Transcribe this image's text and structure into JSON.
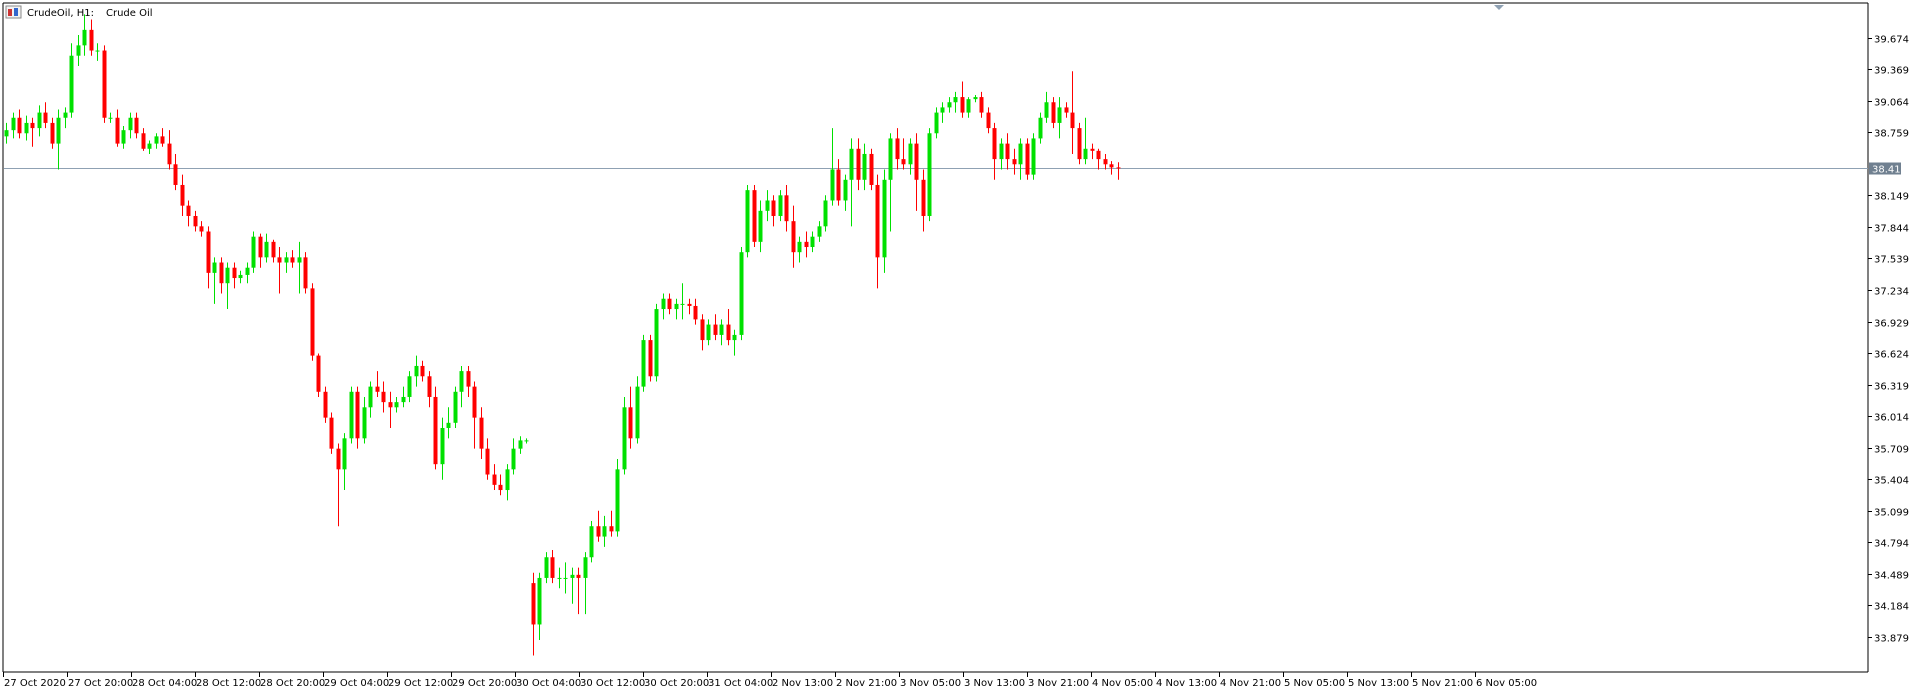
{
  "header": {
    "symbol_label": "CrudeOil, H1:",
    "description": "Crude Oil",
    "icon": "chart-window-icon"
  },
  "chart_data": {
    "type": "candlestick",
    "symbol": "CrudeOil",
    "timeframe": "H1",
    "description": "Crude Oil",
    "ylim": [
      33.55,
      40.0
    ],
    "y_ticks": [
      39.674,
      39.369,
      39.064,
      38.759,
      38.149,
      37.844,
      37.539,
      37.234,
      36.929,
      36.624,
      36.319,
      36.014,
      35.709,
      35.404,
      35.099,
      34.794,
      34.489,
      34.184,
      33.879
    ],
    "current_price": 38.415,
    "x_labels": [
      "27 Oct 2020",
      "27 Oct 20:00",
      "28 Oct 04:00",
      "28 Oct 12:00",
      "28 Oct 20:00",
      "29 Oct 04:00",
      "29 Oct 12:00",
      "29 Oct 20:00",
      "30 Oct 04:00",
      "30 Oct 12:00",
      "30 Oct 20:00",
      "31 Oct 04:00",
      "2 Nov 13:00",
      "2 Nov 21:00",
      "3 Nov 05:00",
      "3 Nov 13:00",
      "3 Nov 21:00",
      "4 Nov 05:00",
      "4 Nov 13:00",
      "4 Nov 21:00",
      "5 Nov 05:00",
      "5 Nov 13:00",
      "5 Nov 21:00",
      "6 Nov 05:00"
    ],
    "colors": {
      "bull": "#00e000",
      "bear": "#ff0000",
      "price_line": "#8fa1b3",
      "price_label_bg": "#708090",
      "axis": "#000000"
    },
    "candles": [
      [
        38.72,
        38.85,
        38.65,
        38.78
      ],
      [
        38.78,
        38.95,
        38.7,
        38.9
      ],
      [
        38.9,
        38.98,
        38.7,
        38.75
      ],
      [
        38.75,
        38.92,
        38.68,
        38.85
      ],
      [
        38.85,
        38.9,
        38.62,
        38.8
      ],
      [
        38.8,
        39.02,
        38.72,
        38.95
      ],
      [
        38.95,
        39.05,
        38.8,
        38.85
      ],
      [
        38.85,
        38.9,
        38.6,
        38.65
      ],
      [
        38.65,
        38.98,
        38.4,
        38.9
      ],
      [
        38.9,
        39.0,
        38.8,
        38.95
      ],
      [
        38.95,
        39.62,
        38.9,
        39.5
      ],
      [
        39.5,
        39.7,
        39.4,
        39.6
      ],
      [
        39.6,
        39.9,
        39.5,
        39.75
      ],
      [
        39.75,
        39.85,
        39.5,
        39.55
      ],
      [
        39.55,
        39.62,
        39.45,
        39.55
      ],
      [
        39.55,
        39.6,
        38.85,
        38.9
      ],
      [
        38.9,
        38.95,
        38.85,
        38.9
      ],
      [
        38.9,
        38.98,
        38.62,
        38.65
      ],
      [
        38.65,
        38.82,
        38.6,
        38.78
      ],
      [
        38.78,
        38.95,
        38.7,
        38.9
      ],
      [
        38.9,
        38.95,
        38.7,
        38.75
      ],
      [
        38.75,
        38.8,
        38.58,
        38.6
      ],
      [
        38.6,
        38.68,
        38.55,
        38.65
      ],
      [
        38.65,
        38.75,
        38.6,
        38.72
      ],
      [
        38.72,
        38.8,
        38.62,
        38.65
      ],
      [
        38.65,
        38.78,
        38.4,
        38.45
      ],
      [
        38.45,
        38.55,
        38.2,
        38.25
      ],
      [
        38.25,
        38.35,
        37.95,
        38.05
      ],
      [
        38.05,
        38.1,
        37.85,
        37.95
      ],
      [
        37.95,
        38.0,
        37.8,
        37.85
      ],
      [
        37.85,
        37.9,
        37.75,
        37.8
      ],
      [
        37.8,
        37.85,
        37.25,
        37.4
      ],
      [
        37.4,
        37.55,
        37.1,
        37.5
      ],
      [
        37.5,
        37.55,
        37.2,
        37.3
      ],
      [
        37.3,
        37.5,
        37.05,
        37.45
      ],
      [
        37.45,
        37.5,
        37.25,
        37.35
      ],
      [
        37.35,
        37.42,
        37.3,
        37.38
      ],
      [
        37.38,
        37.5,
        37.3,
        37.45
      ],
      [
        37.45,
        37.8,
        37.4,
        37.75
      ],
      [
        37.75,
        37.78,
        37.45,
        37.55
      ],
      [
        37.55,
        37.78,
        37.5,
        37.7
      ],
      [
        37.7,
        37.72,
        37.5,
        37.55
      ],
      [
        37.55,
        37.65,
        37.2,
        37.5
      ],
      [
        37.5,
        37.6,
        37.4,
        37.55
      ],
      [
        37.55,
        37.62,
        37.45,
        37.5
      ],
      [
        37.5,
        37.7,
        37.2,
        37.55
      ],
      [
        37.55,
        37.6,
        37.2,
        37.25
      ],
      [
        37.25,
        37.3,
        36.55,
        36.6
      ],
      [
        36.6,
        36.62,
        36.2,
        36.25
      ],
      [
        36.25,
        36.3,
        35.95,
        36.0
      ],
      [
        36.0,
        36.05,
        35.65,
        35.7
      ],
      [
        35.7,
        35.75,
        34.95,
        35.5
      ],
      [
        35.5,
        35.85,
        35.3,
        35.8
      ],
      [
        35.8,
        36.3,
        35.75,
        36.25
      ],
      [
        36.25,
        36.3,
        35.7,
        35.8
      ],
      [
        35.8,
        36.2,
        35.75,
        36.1
      ],
      [
        36.1,
        36.35,
        36.0,
        36.3
      ],
      [
        36.3,
        36.45,
        36.2,
        36.25
      ],
      [
        36.25,
        36.35,
        36.05,
        36.15
      ],
      [
        36.15,
        36.25,
        35.9,
        36.1
      ],
      [
        36.1,
        36.2,
        36.05,
        36.15
      ],
      [
        36.15,
        36.3,
        36.1,
        36.2
      ],
      [
        36.2,
        36.45,
        36.15,
        36.4
      ],
      [
        36.4,
        36.6,
        36.3,
        36.5
      ],
      [
        36.5,
        36.55,
        36.35,
        36.4
      ],
      [
        36.4,
        36.45,
        36.1,
        36.2
      ],
      [
        36.2,
        36.3,
        35.5,
        35.55
      ],
      [
        35.55,
        36.0,
        35.4,
        35.9
      ],
      [
        35.9,
        36.1,
        35.8,
        35.95
      ],
      [
        35.95,
        36.3,
        35.9,
        36.25
      ],
      [
        36.25,
        36.5,
        36.1,
        36.45
      ],
      [
        36.45,
        36.5,
        36.2,
        36.3
      ],
      [
        36.3,
        36.35,
        35.7,
        36.0
      ],
      [
        36.0,
        36.1,
        35.6,
        35.7
      ],
      [
        35.7,
        35.8,
        35.4,
        35.45
      ],
      [
        35.45,
        35.55,
        35.3,
        35.35
      ],
      [
        35.35,
        35.45,
        35.25,
        35.3
      ],
      [
        35.3,
        35.55,
        35.2,
        35.5
      ],
      [
        35.5,
        35.8,
        35.45,
        35.7
      ],
      [
        35.7,
        35.82,
        35.65,
        35.78
      ],
      [
        35.78,
        35.8,
        35.75,
        35.78
      ],
      [
        34.4,
        34.5,
        33.7,
        34.0
      ],
      [
        34.0,
        34.5,
        33.85,
        34.45
      ],
      [
        34.45,
        34.7,
        34.4,
        34.65
      ],
      [
        34.65,
        34.72,
        34.4,
        34.45
      ],
      [
        34.45,
        34.55,
        34.35,
        34.45
      ],
      [
        34.45,
        34.6,
        34.3,
        34.45
      ],
      [
        34.45,
        34.55,
        34.2,
        34.48
      ],
      [
        34.48,
        34.55,
        34.1,
        34.45
      ],
      [
        34.45,
        34.7,
        34.1,
        34.65
      ],
      [
        34.65,
        35.0,
        34.6,
        34.95
      ],
      [
        34.95,
        35.1,
        34.8,
        34.85
      ],
      [
        34.85,
        35.05,
        34.75,
        34.95
      ],
      [
        34.95,
        35.1,
        34.85,
        34.9
      ],
      [
        34.9,
        35.6,
        34.85,
        35.5
      ],
      [
        35.5,
        36.2,
        35.45,
        36.1
      ],
      [
        36.1,
        36.3,
        35.7,
        35.8
      ],
      [
        35.8,
        36.4,
        35.75,
        36.3
      ],
      [
        36.3,
        36.8,
        36.25,
        36.75
      ],
      [
        36.75,
        36.8,
        36.35,
        36.4
      ],
      [
        36.4,
        37.1,
        36.35,
        37.05
      ],
      [
        37.05,
        37.2,
        36.95,
        37.15
      ],
      [
        37.15,
        37.2,
        37.0,
        37.05
      ],
      [
        37.05,
        37.15,
        36.95,
        37.1
      ],
      [
        37.1,
        37.3,
        36.95,
        37.1
      ],
      [
        37.1,
        37.15,
        37.0,
        37.08
      ],
      [
        37.08,
        37.15,
        36.9,
        36.95
      ],
      [
        36.95,
        37.0,
        36.65,
        36.75
      ],
      [
        36.75,
        36.95,
        36.7,
        36.9
      ],
      [
        36.9,
        37.0,
        36.75,
        36.8
      ],
      [
        36.8,
        36.95,
        36.7,
        36.9
      ],
      [
        36.9,
        37.05,
        36.7,
        36.75
      ],
      [
        36.75,
        36.85,
        36.6,
        36.8
      ],
      [
        36.8,
        37.65,
        36.75,
        37.6
      ],
      [
        37.6,
        38.25,
        37.55,
        38.2
      ],
      [
        38.2,
        38.25,
        37.65,
        37.7
      ],
      [
        37.7,
        38.1,
        37.6,
        38.0
      ],
      [
        38.0,
        38.2,
        37.9,
        38.1
      ],
      [
        38.1,
        38.15,
        37.85,
        37.95
      ],
      [
        37.95,
        38.2,
        37.9,
        38.15
      ],
      [
        38.15,
        38.25,
        37.8,
        37.9
      ],
      [
        37.9,
        38.05,
        37.45,
        37.6
      ],
      [
        37.6,
        37.75,
        37.5,
        37.7
      ],
      [
        37.7,
        37.8,
        37.55,
        37.65
      ],
      [
        37.65,
        37.8,
        37.6,
        37.75
      ],
      [
        37.75,
        37.9,
        37.7,
        37.85
      ],
      [
        37.85,
        38.15,
        37.8,
        38.1
      ],
      [
        38.1,
        38.8,
        38.05,
        38.4
      ],
      [
        38.4,
        38.5,
        38.05,
        38.1
      ],
      [
        38.1,
        38.35,
        38.0,
        38.3
      ],
      [
        38.3,
        38.7,
        37.85,
        38.6
      ],
      [
        38.6,
        38.7,
        38.2,
        38.3
      ],
      [
        38.3,
        38.65,
        38.2,
        38.55
      ],
      [
        38.55,
        38.6,
        38.2,
        38.25
      ],
      [
        38.25,
        38.35,
        37.25,
        37.55
      ],
      [
        37.55,
        38.4,
        37.4,
        38.3
      ],
      [
        38.3,
        38.75,
        37.8,
        38.7
      ],
      [
        38.7,
        38.8,
        38.4,
        38.5
      ],
      [
        38.5,
        38.7,
        38.4,
        38.45
      ],
      [
        38.45,
        38.7,
        38.35,
        38.65
      ],
      [
        38.65,
        38.75,
        38.0,
        38.3
      ],
      [
        38.3,
        38.4,
        37.8,
        37.95
      ],
      [
        37.95,
        38.8,
        37.9,
        38.75
      ],
      [
        38.75,
        39.0,
        38.7,
        38.95
      ],
      [
        38.95,
        39.05,
        38.85,
        39.0
      ],
      [
        39.0,
        39.1,
        38.95,
        39.05
      ],
      [
        39.05,
        39.15,
        38.95,
        39.1
      ],
      [
        39.1,
        39.25,
        38.9,
        38.95
      ],
      [
        38.95,
        39.1,
        38.9,
        39.08
      ],
      [
        39.08,
        39.12,
        39.05,
        39.1
      ],
      [
        39.1,
        39.15,
        38.9,
        38.95
      ],
      [
        38.95,
        39.0,
        38.75,
        38.8
      ],
      [
        38.8,
        38.85,
        38.3,
        38.5
      ],
      [
        38.5,
        38.7,
        38.4,
        38.65
      ],
      [
        38.65,
        38.75,
        38.4,
        38.5
      ],
      [
        38.5,
        38.6,
        38.35,
        38.45
      ],
      [
        38.45,
        38.7,
        38.3,
        38.65
      ],
      [
        38.65,
        38.7,
        38.3,
        38.35
      ],
      [
        38.35,
        38.75,
        38.3,
        38.7
      ],
      [
        38.7,
        38.95,
        38.65,
        38.9
      ],
      [
        38.9,
        39.15,
        38.85,
        39.05
      ],
      [
        39.05,
        39.1,
        38.8,
        38.85
      ],
      [
        38.85,
        39.1,
        38.7,
        39.0
      ],
      [
        39.0,
        39.05,
        38.9,
        38.95
      ],
      [
        38.95,
        39.35,
        38.55,
        38.8
      ],
      [
        38.8,
        38.85,
        38.45,
        38.5
      ],
      [
        38.5,
        38.9,
        38.45,
        38.6
      ],
      [
        38.6,
        38.65,
        38.5,
        38.58
      ],
      [
        38.58,
        38.6,
        38.4,
        38.5
      ],
      [
        38.5,
        38.55,
        38.4,
        38.45
      ],
      [
        38.45,
        38.48,
        38.35,
        38.42
      ],
      [
        38.42,
        38.47,
        38.3,
        38.415
      ]
    ]
  }
}
